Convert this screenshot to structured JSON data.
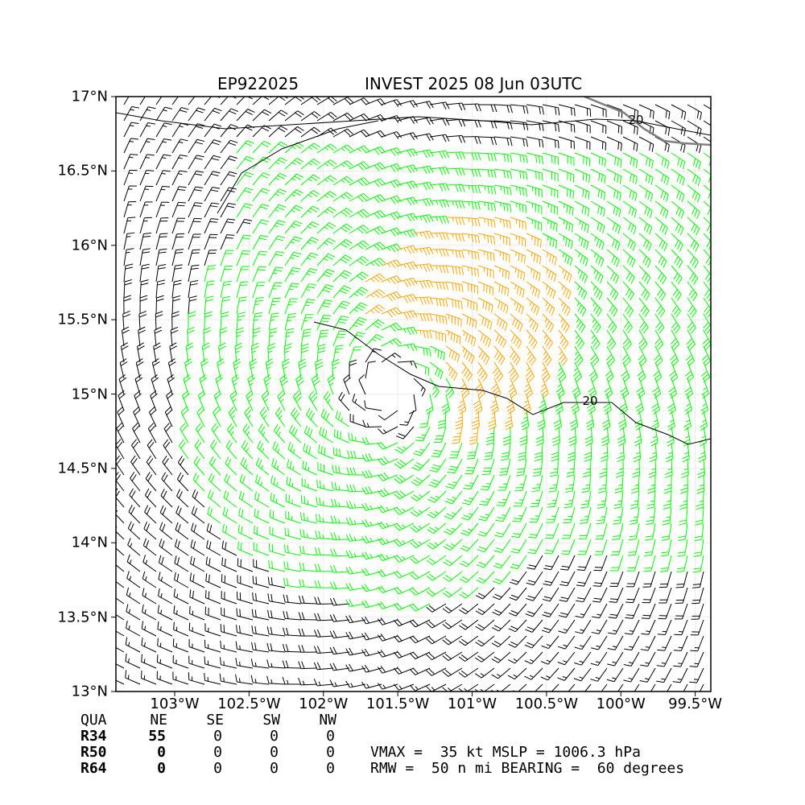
{
  "title_left": "EP922025",
  "title_right": "INVEST 2025 08 Jun 03UTC",
  "lat_labels": [
    "17°N",
    "16.5°N",
    "16°N",
    "15.5°N",
    "15°N",
    "14.5°N",
    "14°N",
    "13.5°N",
    "13°N"
  ],
  "lon_labels": [
    "103°W",
    "102.5°W",
    "102°W",
    "101.5°W",
    "101°W",
    "100.5°W",
    "100°W",
    "99.5°W"
  ],
  "contour_label": "20",
  "colors": {
    "below34": "#000000",
    "gale34": "#00ff00",
    "storm50": "#ffa500",
    "land": "#808080"
  },
  "storm_center": {
    "lat": 15.02,
    "lon": -101.55
  },
  "wind_radii": {
    "header": [
      "QUA",
      "NE",
      "SE",
      "SW",
      "NW"
    ],
    "rows": [
      {
        "label": "R34",
        "values": [
          "55",
          "0",
          "0",
          "0"
        ]
      },
      {
        "label": "R50",
        "values": [
          "0",
          "0",
          "0",
          "0"
        ]
      },
      {
        "label": "R64",
        "values": [
          "0",
          "0",
          "0",
          "0"
        ]
      }
    ]
  },
  "stats": {
    "line1": "VMAX =  35 kt MSLP = 1006.3 hPa",
    "line2": "RMW =  50 n mi BEARING =  60 degrees"
  }
}
